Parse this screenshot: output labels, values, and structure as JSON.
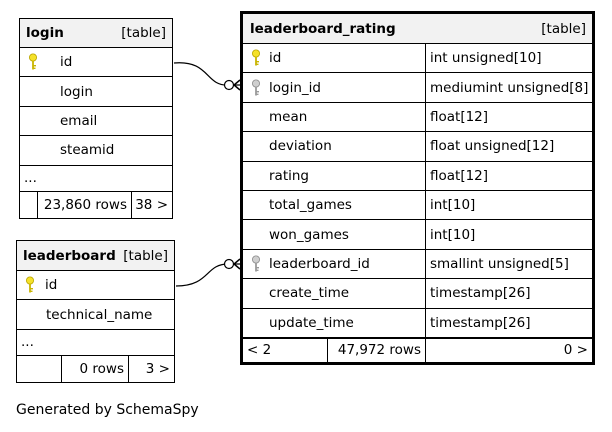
{
  "colors": {
    "primary_key": "#f5e12a",
    "foreign_key": "#aaaaaa",
    "header_bg": "#f2f2f2"
  },
  "tables": {
    "login": {
      "name": "login",
      "kind": "[table]",
      "columns": [
        {
          "name": "id",
          "key": "primary-key-icon"
        },
        {
          "name": "login",
          "key": ""
        },
        {
          "name": "email",
          "key": ""
        },
        {
          "name": "steamid",
          "key": ""
        }
      ],
      "ellipsis": "...",
      "rows": "23,860 rows",
      "children": "38 >"
    },
    "leaderboard": {
      "name": "leaderboard",
      "kind": "[table]",
      "columns": [
        {
          "name": "id",
          "key": "primary-key-icon"
        },
        {
          "name": "technical_name",
          "key": ""
        }
      ],
      "ellipsis": "...",
      "rows": "0 rows",
      "children": "3 >"
    },
    "leaderboard_rating": {
      "name": "leaderboard_rating",
      "kind": "[table]",
      "columns": [
        {
          "name": "id",
          "type": "int unsigned[10]",
          "key": "primary-key-icon"
        },
        {
          "name": "login_id",
          "type": "mediumint unsigned[8]",
          "key": "foreign-key-icon"
        },
        {
          "name": "mean",
          "type": "float[12]",
          "key": ""
        },
        {
          "name": "deviation",
          "type": "float unsigned[12]",
          "key": ""
        },
        {
          "name": "rating",
          "type": "float[12]",
          "key": ""
        },
        {
          "name": "total_games",
          "type": "int[10]",
          "key": ""
        },
        {
          "name": "won_games",
          "type": "int[10]",
          "key": ""
        },
        {
          "name": "leaderboard_id",
          "type": "smallint unsigned[5]",
          "key": "foreign-key-icon"
        },
        {
          "name": "create_time",
          "type": "timestamp[26]",
          "key": ""
        },
        {
          "name": "update_time",
          "type": "timestamp[26]",
          "key": ""
        }
      ],
      "parents": "< 2",
      "rows": "47,972 rows",
      "children": "0 >"
    }
  },
  "footer": {
    "generated": "Generated by SchemaSpy"
  }
}
